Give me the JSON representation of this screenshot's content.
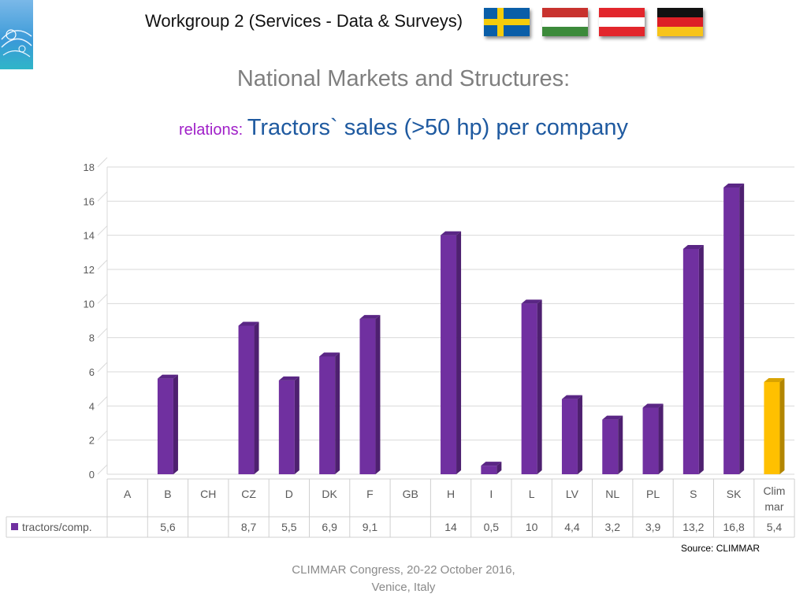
{
  "header": {
    "title": "Workgroup 2 (Services - Data & Surveys)",
    "flags": [
      "sweden-flag-icon",
      "hungary-flag-icon",
      "austria-flag-icon",
      "germany-flag-icon"
    ]
  },
  "slide": {
    "title": "National Markets and Structures:",
    "subtitle_prefix": "relations: ",
    "subtitle_main": "Tractors` sales (>50 hp) per company",
    "source": "Source: CLIMMAR",
    "footer_line1": "CLIMMAR Congress, 20-22 October 2016,",
    "footer_line2": "Venice, Italy"
  },
  "chart_data": {
    "type": "bar",
    "categories": [
      "A",
      "B",
      "CH",
      "CZ",
      "D",
      "DK",
      "F",
      "GB",
      "H",
      "I",
      "L",
      "LV",
      "NL",
      "PL",
      "S",
      "SK",
      "Clim mar"
    ],
    "series": [
      {
        "name": "tractors/comp.",
        "values": [
          null,
          5.6,
          null,
          8.7,
          5.5,
          6.9,
          9.1,
          null,
          14,
          0.5,
          10,
          4.4,
          3.2,
          3.9,
          13.2,
          16.8,
          5.4
        ],
        "labels": [
          "",
          "5,6",
          "",
          "8,7",
          "5,5",
          "6,9",
          "9,1",
          "",
          "14",
          "0,5",
          "10",
          "4,4",
          "3,2",
          "3,9",
          "13,2",
          "16,8",
          "5,4"
        ]
      }
    ],
    "highlight_category": "Clim mar",
    "ylim": [
      0,
      18
    ],
    "yticks": [
      0,
      2,
      4,
      6,
      8,
      10,
      12,
      14,
      16,
      18
    ],
    "grid": true,
    "data_table": true,
    "colors": {
      "bar_front": "#7030a0",
      "bar_side": "#4e2070",
      "bar_top": "#5a2685",
      "highlight_front": "#ffc000",
      "highlight_side": "#b38600",
      "highlight_top": "#d9a300",
      "legend_marker": "#7030a0",
      "grid": "#d9d9d9",
      "table_border": "#d0d0d0"
    }
  }
}
